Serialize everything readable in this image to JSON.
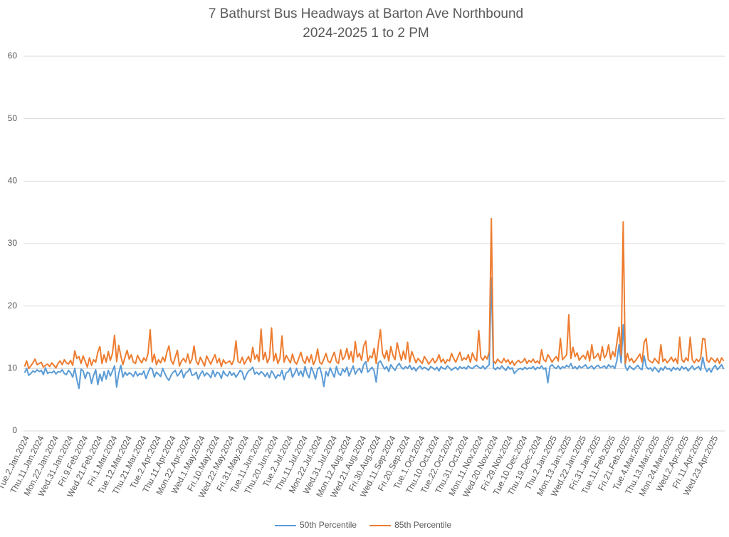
{
  "chart_data": {
    "type": "line",
    "title": "7 Bathurst Bus Headways at Barton Ave Northbound",
    "subtitle": "2024-2025 1 to 2 PM",
    "ylim": [
      0,
      60
    ],
    "yticks": [
      0,
      10,
      20,
      30,
      40,
      50,
      60
    ],
    "grid": true,
    "legend": "bottom",
    "categories": [
      "Tue.2.Jan.2024",
      null,
      null,
      null,
      null,
      null,
      null,
      "Thu.11.Jan.2024",
      null,
      null,
      null,
      null,
      null,
      null,
      "Mon.22.Jan.2024",
      null,
      null,
      null,
      null,
      null,
      null,
      "Wed.31.Jan.2024",
      null,
      null,
      null,
      null,
      null,
      null,
      "Fri.9.Feb.2024",
      null,
      null,
      null,
      null,
      null,
      null,
      "Wed.21.Feb.2024",
      null,
      null,
      null,
      null,
      null,
      null,
      "Fri.1.Mar.2024",
      null,
      null,
      null,
      null,
      null,
      null,
      "Tue.12.Mar.2024",
      null,
      null,
      null,
      null,
      null,
      null,
      "Thu.21.Mar.2024",
      null,
      null,
      null,
      null,
      null,
      null,
      "Tue.2.Apr.2024",
      null,
      null,
      null,
      null,
      null,
      null,
      "Thu.11.Apr.2024",
      null,
      null,
      null,
      null,
      null,
      null,
      "Mon.22.Apr.2024",
      null,
      null,
      null,
      null,
      null,
      null,
      "Wed.1.May.2024",
      null,
      null,
      null,
      null,
      null,
      null,
      "Fri.10.May.2024",
      null,
      null,
      null,
      null,
      null,
      null,
      "Wed.22.May.2024",
      null,
      null,
      null,
      null,
      null,
      null,
      "Fri.31.May.2024",
      null,
      null,
      null,
      null,
      null,
      null,
      "Tue.11.Jun.2024",
      null,
      null,
      null,
      null,
      null,
      null,
      "Thu.20.Jun.2024",
      null,
      null,
      null,
      null,
      null,
      null,
      "Tue.2.Jul.2024",
      null,
      null,
      null,
      null,
      null,
      null,
      "Thu.11.Jul.2024",
      null,
      null,
      null,
      null,
      null,
      null,
      "Mon.22.Jul.2024",
      null,
      null,
      null,
      null,
      null,
      null,
      "Wed.31.Jul.2024",
      null,
      null,
      null,
      null,
      null,
      null,
      "Mon.12.Aug.2024",
      null,
      null,
      null,
      null,
      null,
      null,
      "Wed.21.Aug.2024",
      null,
      null,
      null,
      null,
      null,
      null,
      "Fri.30.Aug.2024",
      null,
      null,
      null,
      null,
      null,
      null,
      "Wed.11.Sep.2024",
      null,
      null,
      null,
      null,
      null,
      null,
      "Fri.20.Sep.2024",
      null,
      null,
      null,
      null,
      null,
      null,
      "Tue.1.Oct.2024",
      null,
      null,
      null,
      null,
      null,
      null,
      "Thu.10.Oct.2024",
      null,
      null,
      null,
      null,
      null,
      null,
      "Tue.22.Oct.2024",
      null,
      null,
      null,
      null,
      null,
      null,
      "Thu.31.Oct.2024",
      null,
      null,
      null,
      null,
      null,
      null,
      "Mon.11.Nov.2024",
      null,
      null,
      null,
      null,
      null,
      null,
      "Wed.20.Nov.2024",
      null,
      null,
      null,
      null,
      null,
      null,
      "Fri.29.Nov.2024",
      null,
      null,
      null,
      null,
      null,
      null,
      "Tue.10.Dec.2024",
      null,
      null,
      null,
      null,
      null,
      null,
      "Thu.19.Dec.2024",
      null,
      null,
      null,
      null,
      null,
      null,
      "Thu.2.Jan.2025",
      null,
      null,
      null,
      null,
      null,
      null,
      "Mon.13.Jan.2025",
      null,
      null,
      null,
      null,
      null,
      null,
      "Wed.22.Jan.2025",
      null,
      null,
      null,
      null,
      null,
      null,
      "Fri.31.Jan.2025",
      null,
      null,
      null,
      null,
      null,
      null,
      "Tue.11.Feb.2025",
      null,
      null,
      null,
      null,
      null,
      null,
      "Fri.21.Feb.2025",
      null,
      null,
      null,
      null,
      null,
      null,
      "Tue.4.Mar.2025",
      null,
      null,
      null,
      null,
      null,
      null,
      "Thu.13.Mar.2025",
      null,
      null,
      null,
      null,
      null,
      null,
      "Mon.24.Mar.2025",
      null,
      null,
      null,
      null,
      null,
      null,
      "Wed.2.Apr.2025",
      null,
      null,
      null,
      null,
      null,
      null,
      "Fri.11.Apr.2025",
      null,
      null,
      null,
      null,
      null,
      null,
      "Wed.23.Apr.2025",
      null,
      null,
      null,
      null,
      null
    ],
    "series": [
      {
        "name": "50th Percentile",
        "color": "#5b9bd5",
        "values": [
          9.3,
          10.0,
          8.9,
          9.2,
          9.6,
          9.4,
          9.8,
          9.5,
          9.7,
          9.0,
          10.1,
          9.2,
          9.4,
          9.3,
          9.6,
          9.1,
          9.5,
          9.4,
          9.8,
          9.2,
          9.0,
          9.7,
          9.3,
          8.6,
          10.0,
          8.2,
          6.8,
          9.9,
          9.6,
          8.4,
          9.4,
          9.2,
          7.6,
          8.9,
          9.8,
          7.4,
          9.1,
          8.0,
          9.5,
          8.3,
          9.7,
          8.8,
          9.6,
          10.4,
          7.0,
          9.2,
          10.5,
          8.6,
          9.4,
          8.9,
          9.3,
          9.1,
          8.7,
          9.5,
          8.8,
          9.2,
          9.0,
          9.6,
          8.4,
          9.3,
          10.1,
          9.9,
          8.6,
          9.4,
          9.1,
          8.7,
          10.0,
          9.2,
          8.5,
          8.1,
          8.9,
          9.4,
          9.7,
          8.8,
          9.2,
          9.8,
          8.5,
          9.3,
          9.5,
          10.0,
          8.9,
          9.0,
          9.4,
          8.3,
          9.1,
          9.6,
          8.8,
          9.3,
          9.0,
          8.5,
          9.7,
          8.7,
          9.4,
          9.2,
          8.4,
          9.6,
          9.0,
          8.8,
          9.5,
          8.9,
          9.3,
          8.6,
          9.1,
          9.7,
          9.4,
          8.2,
          9.0,
          9.6,
          9.8,
          10.2,
          9.1,
          9.4,
          9.0,
          9.5,
          9.2,
          8.7,
          9.3,
          8.5,
          9.6,
          9.1,
          8.4,
          9.0,
          8.8,
          9.7,
          8.2,
          9.3,
          9.5,
          10.1,
          8.6,
          9.2,
          10.0,
          8.9,
          9.6,
          8.7,
          10.3,
          9.1,
          8.5,
          10.2,
          9.4,
          8.3,
          9.9,
          10.2,
          9.0,
          7.1,
          9.5,
          8.8,
          10.1,
          9.3,
          8.6,
          10.3,
          9.2,
          8.9,
          9.9,
          9.4,
          10.2,
          8.8,
          9.6,
          10.4,
          9.1,
          9.7,
          10.0,
          9.3,
          10.6,
          11.1,
          9.4,
          9.8,
          10.2,
          9.6,
          7.8,
          10.9,
          11.2,
          10.5,
          9.9,
          10.3,
          9.5,
          10.6,
          10.1,
          9.7,
          10.4,
          10.8,
          10.2,
          9.9,
          10.3,
          10.0,
          10.5,
          9.8,
          10.2,
          9.6,
          10.1,
          10.4,
          9.9,
          10.2,
          10.0,
          9.7,
          10.3,
          10.1,
          9.8,
          10.2,
          9.6,
          10.3,
          10.0,
          9.9,
          10.4,
          10.1,
          9.7,
          10.0,
          10.2,
          9.8,
          10.3,
          10.0,
          10.2,
          9.9,
          10.4,
          10.1,
          10.0,
          10.3,
          10.5,
          10.2,
          10.0,
          10.4,
          9.9,
          10.3,
          10.6,
          24.5,
          10.1,
          9.8,
          10.2,
          9.9,
          10.4,
          10.0,
          9.7,
          10.3,
          9.9,
          10.1,
          9.2,
          9.6,
          9.9,
          10.0,
          9.8,
          10.2,
          9.9,
          10.1,
          10.0,
          10.3,
          9.8,
          10.2,
          10.0,
          10.4,
          9.9,
          10.1,
          7.7,
          10.3,
          10.6,
          10.2,
          10.0,
          10.4,
          9.9,
          10.3,
          10.1,
          10.5,
          10.2,
          10.8,
          10.0,
          10.3,
          9.9,
          10.4,
          10.1,
          10.3,
          10.6,
          10.0,
          10.2,
          10.4,
          9.9,
          10.3,
          10.5,
          10.1,
          10.2,
          10.4,
          10.0,
          10.6,
          10.2,
          10.4,
          10.0,
          11.3,
          13.8,
          10.9,
          17.0,
          10.3,
          9.7,
          10.4,
          10.1,
          9.8,
          10.2,
          10.5,
          10.0,
          9.8,
          12.0,
          10.3,
          9.9,
          10.1,
          9.6,
          10.2,
          9.8,
          9.4,
          10.1,
          9.7,
          10.3,
          9.9,
          10.0,
          9.6,
          10.2,
          9.8,
          10.1,
          9.7,
          10.3,
          9.9,
          10.2,
          9.6,
          10.0,
          10.4,
          9.8,
          10.1,
          10.3,
          9.7,
          11.8,
          10.2,
          9.5,
          10.0,
          9.4,
          10.1,
          10.5,
          9.8,
          10.2,
          10.6,
          9.9
        ]
      },
      {
        "name": "85th Percentile",
        "color": "#ed7d31",
        "values": [
          10.3,
          11.2,
          10.0,
          10.4,
          10.9,
          11.5,
          10.6,
          10.8,
          11.0,
          10.2,
          10.5,
          10.7,
          10.3,
          10.9,
          10.5,
          10.1,
          10.8,
          11.2,
          10.6,
          11.4,
          10.9,
          10.7,
          11.3,
          10.5,
          12.8,
          11.6,
          11.9,
          10.8,
          12.0,
          11.1,
          10.2,
          11.7,
          10.5,
          11.4,
          11.0,
          12.6,
          13.5,
          10.8,
          12.2,
          11.0,
          12.7,
          11.3,
          12.4,
          15.3,
          11.1,
          13.7,
          12.0,
          10.6,
          11.8,
          12.9,
          11.5,
          12.2,
          11.0,
          10.8,
          12.1,
          11.4,
          10.9,
          11.7,
          11.2,
          12.4,
          16.2,
          11.0,
          12.3,
          10.6,
          11.4,
          10.9,
          11.8,
          11.1,
          12.6,
          13.6,
          11.3,
          10.7,
          11.8,
          12.9,
          10.4,
          11.2,
          11.6,
          11.0,
          12.3,
          10.8,
          11.5,
          13.6,
          11.2,
          10.6,
          11.8,
          11.1,
          10.4,
          12.0,
          11.3,
          10.7,
          11.5,
          12.2,
          10.9,
          11.6,
          10.3,
          11.4,
          10.8,
          11.0,
          11.2,
          10.6,
          11.4,
          14.4,
          11.1,
          10.9,
          11.8,
          10.7,
          11.3,
          11.9,
          11.0,
          13.4,
          11.5,
          12.2,
          11.1,
          16.3,
          11.4,
          12.6,
          10.9,
          11.7,
          16.5,
          11.2,
          12.4,
          10.8,
          11.6,
          15.2,
          11.0,
          12.1,
          11.5,
          10.9,
          12.3,
          11.1,
          10.7,
          11.6,
          12.6,
          11.3,
          10.8,
          11.9,
          11.0,
          12.2,
          10.6,
          11.4,
          13.1,
          11.0,
          10.7,
          11.5,
          12.4,
          11.2,
          10.9,
          11.8,
          12.6,
          11.1,
          10.8,
          13.0,
          11.4,
          11.9,
          13.2,
          11.5,
          12.7,
          11.0,
          14.3,
          11.8,
          12.4,
          11.3,
          13.6,
          14.4,
          11.1,
          12.0,
          11.7,
          13.2,
          10.8,
          13.8,
          16.2,
          12.4,
          11.6,
          12.9,
          11.2,
          13.5,
          12.1,
          11.4,
          14.1,
          12.6,
          11.3,
          12.8,
          11.5,
          14.2,
          11.0,
          12.7,
          11.8,
          10.9,
          11.6,
          11.2,
          10.8,
          11.9,
          11.4,
          10.7,
          11.1,
          11.6,
          10.9,
          11.3,
          12.2,
          11.0,
          11.5,
          10.8,
          11.4,
          11.2,
          12.4,
          11.6,
          11.0,
          11.8,
          12.6,
          11.3,
          11.7,
          11.4,
          12.2,
          11.0,
          12.5,
          11.6,
          11.2,
          16.1,
          11.8,
          11.3,
          12.0,
          11.5,
          12.7,
          34.0,
          11.2,
          10.8,
          11.5,
          11.1,
          10.9,
          11.6,
          11.0,
          11.4,
          10.7,
          11.2,
          10.5,
          11.0,
          11.3,
          10.9,
          11.1,
          11.6,
          10.8,
          11.3,
          11.0,
          11.5,
          10.9,
          11.2,
          10.8,
          13.0,
          11.4,
          11.1,
          12.2,
          11.7,
          11.0,
          11.5,
          11.9,
          11.2,
          14.8,
          11.4,
          11.8,
          12.2,
          18.6,
          11.6,
          13.4,
          11.9,
          12.5,
          11.3,
          11.8,
          12.1,
          11.5,
          12.8,
          11.2,
          13.8,
          11.6,
          11.9,
          12.4,
          11.3,
          13.5,
          11.7,
          12.2,
          13.8,
          11.5,
          12.7,
          11.9,
          14.2,
          16.6,
          12.1,
          33.5,
          10.8,
          12.4,
          11.2,
          11.6,
          10.9,
          11.3,
          11.8,
          12.3,
          11.0,
          14.2,
          14.8,
          11.4,
          11.1,
          10.9,
          11.6,
          11.2,
          10.8,
          13.8,
          11.1,
          11.5,
          10.9,
          11.3,
          11.8,
          11.1,
          11.6,
          10.8,
          15.0,
          11.4,
          11.0,
          11.7,
          11.2,
          15.0,
          11.4,
          10.9,
          11.5,
          11.1,
          11.6,
          14.8,
          14.7,
          11.3,
          11.0,
          11.7,
          11.4,
          11.0,
          11.6,
          10.8,
          11.7,
          11.2
        ]
      }
    ]
  }
}
